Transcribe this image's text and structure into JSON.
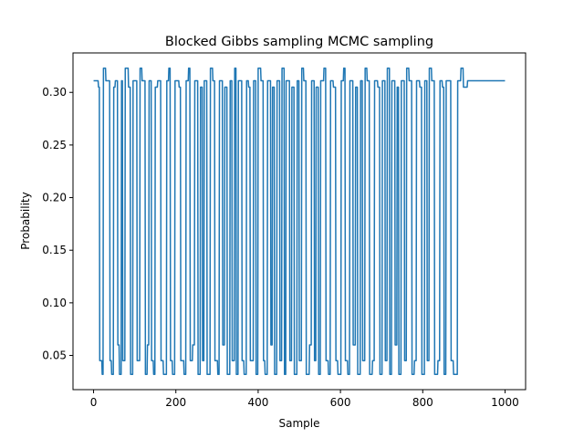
{
  "chart_data": {
    "type": "line",
    "title": "Blocked Gibbs sampling MCMC sampling",
    "xlabel": "Sample",
    "ylabel": "Probability",
    "xlim": [
      -50,
      1050
    ],
    "ylim": [
      0.0175,
      0.3375
    ],
    "x_ticks": [
      0,
      200,
      400,
      600,
      800,
      1000
    ],
    "y_ticks": [
      0.05,
      0.1,
      0.15,
      0.2,
      0.25,
      0.3
    ],
    "x_tick_labels": [
      "0",
      "200",
      "400",
      "600",
      "800",
      "1000"
    ],
    "y_tick_labels": [
      "0.05",
      "0.10",
      "0.15",
      "0.20",
      "0.25",
      "0.30"
    ],
    "grid": false,
    "series": [
      {
        "color": "#1f77b4",
        "x_start": 0,
        "x_step": 1,
        "state_levels": [
          0.032,
          0.045,
          0.06,
          0.305,
          0.311,
          0.323
        ],
        "segments": [
          [
            0.311,
            12
          ],
          [
            0.305,
            3
          ],
          [
            0.045,
            6
          ],
          [
            0.032,
            3
          ],
          [
            0.323,
            6
          ],
          [
            0.311,
            10
          ],
          [
            0.045,
            4
          ],
          [
            0.032,
            5
          ],
          [
            0.305,
            4
          ],
          [
            0.311,
            6
          ],
          [
            0.06,
            4
          ],
          [
            0.032,
            5
          ],
          [
            0.311,
            3
          ],
          [
            0.045,
            6
          ],
          [
            0.323,
            8
          ],
          [
            0.305,
            5
          ],
          [
            0.032,
            6
          ],
          [
            0.311,
            10
          ],
          [
            0.045,
            7
          ],
          [
            0.323,
            5
          ],
          [
            0.311,
            8
          ],
          [
            0.032,
            5
          ],
          [
            0.06,
            4
          ],
          [
            0.311,
            6
          ],
          [
            0.045,
            5
          ],
          [
            0.032,
            4
          ],
          [
            0.305,
            6
          ],
          [
            0.311,
            8
          ],
          [
            0.045,
            6
          ],
          [
            0.032,
            8
          ],
          [
            0.311,
            5
          ],
          [
            0.323,
            4
          ],
          [
            0.045,
            5
          ],
          [
            0.032,
            6
          ],
          [
            0.311,
            10
          ],
          [
            0.305,
            4
          ],
          [
            0.045,
            8
          ],
          [
            0.032,
            5
          ],
          [
            0.311,
            6
          ],
          [
            0.323,
            4
          ],
          [
            0.045,
            6
          ],
          [
            0.06,
            5
          ],
          [
            0.311,
            8
          ],
          [
            0.032,
            6
          ],
          [
            0.305,
            5
          ],
          [
            0.045,
            4
          ],
          [
            0.311,
            7
          ],
          [
            0.032,
            8
          ],
          [
            0.323,
            6
          ],
          [
            0.311,
            5
          ],
          [
            0.045,
            7
          ],
          [
            0.032,
            4
          ],
          [
            0.311,
            8
          ],
          [
            0.06,
            5
          ],
          [
            0.305,
            6
          ],
          [
            0.032,
            7
          ],
          [
            0.311,
            5
          ],
          [
            0.045,
            6
          ],
          [
            0.323,
            4
          ],
          [
            0.032,
            5
          ],
          [
            0.311,
            9
          ],
          [
            0.045,
            5
          ],
          [
            0.032,
            6
          ],
          [
            0.311,
            5
          ],
          [
            0.305,
            4
          ],
          [
            0.045,
            8
          ],
          [
            0.311,
            6
          ],
          [
            0.032,
            5
          ],
          [
            0.323,
            7
          ],
          [
            0.311,
            6
          ],
          [
            0.045,
            4
          ],
          [
            0.032,
            6
          ],
          [
            0.311,
            8
          ],
          [
            0.06,
            4
          ],
          [
            0.305,
            5
          ],
          [
            0.032,
            6
          ],
          [
            0.311,
            7
          ],
          [
            0.045,
            5
          ],
          [
            0.323,
            6
          ],
          [
            0.032,
            4
          ],
          [
            0.311,
            9
          ],
          [
            0.045,
            5
          ],
          [
            0.305,
            6
          ],
          [
            0.032,
            7
          ],
          [
            0.311,
            5
          ],
          [
            0.045,
            6
          ],
          [
            0.323,
            5
          ],
          [
            0.311,
            6
          ],
          [
            0.032,
            8
          ],
          [
            0.06,
            5
          ],
          [
            0.311,
            7
          ],
          [
            0.045,
            4
          ],
          [
            0.305,
            6
          ],
          [
            0.032,
            5
          ],
          [
            0.311,
            8
          ],
          [
            0.323,
            5
          ],
          [
            0.045,
            6
          ],
          [
            0.032,
            5
          ],
          [
            0.311,
            7
          ],
          [
            0.305,
            6
          ],
          [
            0.045,
            5
          ],
          [
            0.032,
            8
          ],
          [
            0.311,
            6
          ],
          [
            0.323,
            4
          ],
          [
            0.045,
            6
          ],
          [
            0.032,
            5
          ],
          [
            0.311,
            8
          ],
          [
            0.06,
            6
          ],
          [
            0.305,
            5
          ],
          [
            0.032,
            7
          ],
          [
            0.311,
            5
          ],
          [
            0.045,
            6
          ],
          [
            0.323,
            5
          ],
          [
            0.311,
            6
          ],
          [
            0.032,
            7
          ],
          [
            0.045,
            5
          ],
          [
            0.311,
            8
          ],
          [
            0.305,
            5
          ],
          [
            0.032,
            6
          ],
          [
            0.311,
            7
          ],
          [
            0.045,
            5
          ],
          [
            0.323,
            6
          ],
          [
            0.032,
            5
          ],
          [
            0.311,
            8
          ],
          [
            0.06,
            5
          ],
          [
            0.305,
            4
          ],
          [
            0.032,
            6
          ],
          [
            0.311,
            8
          ],
          [
            0.045,
            5
          ],
          [
            0.323,
            6
          ],
          [
            0.311,
            7
          ],
          [
            0.032,
            6
          ],
          [
            0.045,
            5
          ],
          [
            0.311,
            8
          ],
          [
            0.305,
            5
          ],
          [
            0.032,
            7
          ],
          [
            0.311,
            6
          ],
          [
            0.045,
            5
          ],
          [
            0.323,
            6
          ],
          [
            0.311,
            7
          ],
          [
            0.032,
            8
          ],
          [
            0.045,
            5
          ],
          [
            0.311,
            6
          ],
          [
            0.305,
            4
          ],
          [
            0.032,
            5
          ],
          [
            0.311,
            12
          ],
          [
            0.045,
            6
          ],
          [
            0.032,
            10
          ],
          [
            0.311,
            8
          ],
          [
            0.323,
            6
          ],
          [
            0.305,
            10
          ],
          [
            0.311,
            12
          ]
        ]
      }
    ]
  }
}
